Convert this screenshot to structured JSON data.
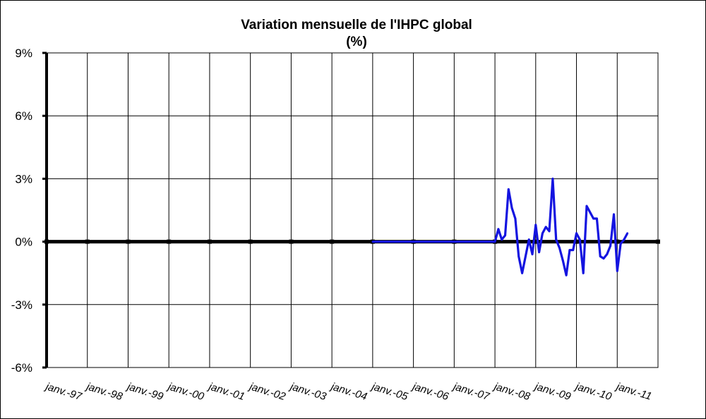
{
  "chart_data": {
    "type": "line",
    "title": "Variation mensuelle de l'IHPC global",
    "subtitle": "(%)",
    "xlabel": "",
    "ylabel": "",
    "ylim": [
      -6,
      9
    ],
    "y_ticks": [
      9,
      6,
      3,
      0,
      -3,
      -6
    ],
    "y_tick_labels": [
      "9%",
      "6%",
      "3%",
      "0%",
      "-3%",
      "-6%"
    ],
    "x_tick_labels": [
      "janv.-97",
      "janv.-98",
      "janv.-99",
      "janv.-00",
      "janv.-01",
      "janv.-02",
      "janv.-03",
      "janv.-04",
      "janv.-05",
      "janv.-06",
      "janv.-07",
      "janv.-08",
      "janv.-09",
      "janv.-10",
      "janv.-11"
    ],
    "x_range": [
      "1997-01",
      "2012-01"
    ],
    "grid": true,
    "line_color": "#1414e0",
    "series": [
      {
        "x": [
          "2005-01",
          "2005-02",
          "2005-03",
          "2005-04",
          "2005-05",
          "2005-06",
          "2005-07",
          "2005-08",
          "2005-09",
          "2005-10",
          "2005-11",
          "2005-12",
          "2006-01",
          "2006-02",
          "2006-03",
          "2006-04",
          "2006-05",
          "2006-06",
          "2006-07",
          "2006-08",
          "2006-09",
          "2006-10",
          "2006-11",
          "2006-12",
          "2007-01",
          "2007-02",
          "2007-03",
          "2007-04",
          "2007-05",
          "2007-06",
          "2007-07",
          "2007-08",
          "2007-09",
          "2007-10",
          "2007-11",
          "2007-12",
          "2008-01",
          "2008-02",
          "2008-03",
          "2008-04",
          "2008-05",
          "2008-06",
          "2008-07",
          "2008-08",
          "2008-09",
          "2008-10",
          "2008-11",
          "2008-12",
          "2009-01",
          "2009-02",
          "2009-03",
          "2009-04",
          "2009-05",
          "2009-06",
          "2009-07",
          "2009-08",
          "2009-09",
          "2009-10",
          "2009-11",
          "2009-12",
          "2010-01",
          "2010-02",
          "2010-03",
          "2010-04",
          "2010-05",
          "2010-06",
          "2010-07",
          "2010-08",
          "2010-09",
          "2010-10",
          "2010-11",
          "2010-12",
          "2011-01",
          "2011-02",
          "2011-03",
          "2011-04"
        ],
        "values": [
          0,
          0,
          0,
          0,
          0,
          0,
          0,
          0,
          0,
          0,
          0,
          0,
          0,
          0,
          0,
          0,
          0,
          0,
          0,
          0,
          0,
          0,
          0,
          0,
          0,
          0,
          0,
          0,
          0,
          0,
          0,
          0,
          0,
          0,
          0,
          0,
          0,
          0.6,
          0.1,
          0.3,
          2.5,
          1.6,
          1.1,
          -0.7,
          -1.5,
          -0.7,
          0.1,
          -0.6,
          0.8,
          -0.5,
          0.4,
          0.7,
          0.5,
          3.0,
          0.1,
          -0.3,
          -0.9,
          -1.6,
          -0.4,
          -0.4,
          0.4,
          0.1,
          -1.5,
          1.7,
          1.4,
          1.1,
          1.1,
          -0.7,
          -0.8,
          -0.6,
          -0.2,
          1.3,
          -1.4,
          -0.1,
          0.1,
          0.4
        ]
      }
    ]
  }
}
